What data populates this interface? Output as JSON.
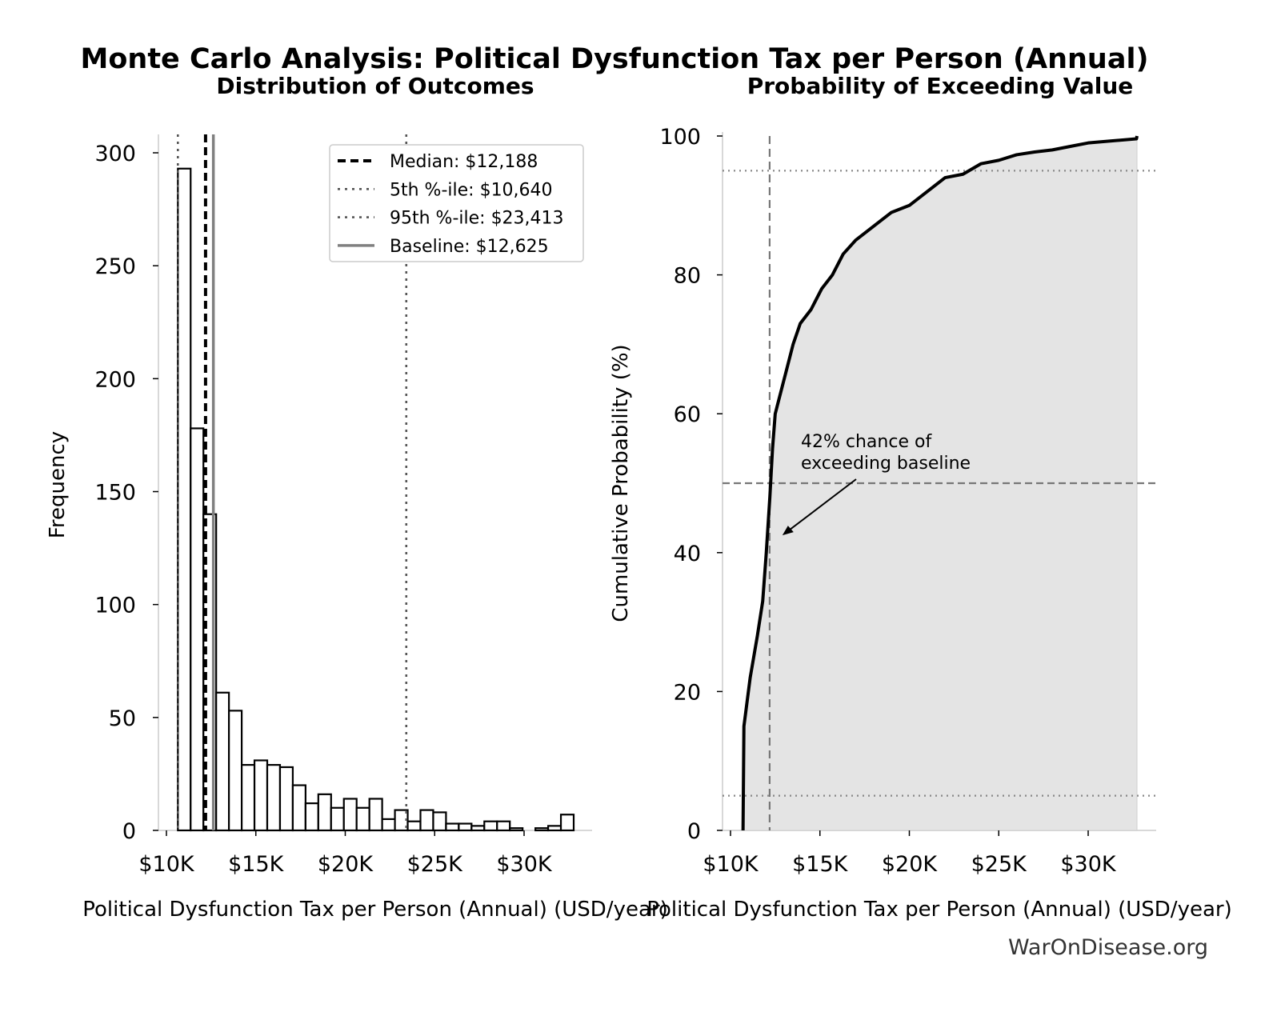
{
  "suptitle": "Monte Carlo Analysis: Political Dysfunction Tax per Person (Annual)",
  "watermark": "WarOnDisease.org",
  "colors": {
    "bar_fill": "#ffffff",
    "bar_edge": "#000000",
    "baseline": "#808080",
    "shade": "#e4e4e4",
    "curve": "#000000",
    "reference": "#555555"
  },
  "chart_data": [
    {
      "type": "bar",
      "title": "Distribution of Outcomes",
      "xlabel": "Political Dysfunction Tax per Person (Annual) (USD/year)",
      "ylabel": "Frequency",
      "bin_start": 10.64,
      "bin_width": 0.714,
      "x_unit": "K USD",
      "values": [
        293,
        178,
        140,
        61,
        53,
        29,
        31,
        29,
        28,
        20,
        12,
        16,
        10,
        14,
        10,
        14,
        5,
        9,
        4,
        9,
        8,
        3,
        3,
        2,
        4,
        4,
        1,
        0,
        1,
        2,
        7
      ],
      "xlim": [
        9.8,
        33.5
      ],
      "ylim": [
        0,
        308
      ],
      "xticks": [
        {
          "v": 10,
          "label": "$10K"
        },
        {
          "v": 15,
          "label": "$15K"
        },
        {
          "v": 20,
          "label": "$20K"
        },
        {
          "v": 25,
          "label": "$25K"
        },
        {
          "v": 30,
          "label": "$30K"
        }
      ],
      "yticks": [
        {
          "v": 0,
          "label": "0"
        },
        {
          "v": 50,
          "label": "50"
        },
        {
          "v": 100,
          "label": "100"
        },
        {
          "v": 150,
          "label": "150"
        },
        {
          "v": 200,
          "label": "200"
        },
        {
          "v": 250,
          "label": "250"
        },
        {
          "v": 300,
          "label": "300"
        }
      ],
      "reference_lines": [
        {
          "name": "Median: $12,188",
          "value": 12.188,
          "style": "dashed",
          "color": "#000000"
        },
        {
          "name": "5th %-ile: $10,640",
          "value": 10.64,
          "style": "dotted",
          "color": "#555555"
        },
        {
          "name": "95th %-ile: $23,413",
          "value": 23.413,
          "style": "dotted",
          "color": "#555555"
        },
        {
          "name": "Baseline: $12,625",
          "value": 12.625,
          "style": "solid",
          "color": "#808080"
        }
      ],
      "legend": "top-right",
      "grid": false
    },
    {
      "type": "area",
      "title": "Probability of Exceeding Value",
      "xlabel": "Political Dysfunction Tax per Person (Annual) (USD/year)",
      "ylabel": "Cumulative Probability (%)",
      "x_unit": "K USD",
      "x": [
        10.7,
        10.75,
        10.9,
        11.1,
        11.5,
        11.8,
        12.0,
        12.2,
        12.35,
        12.5,
        12.8,
        13.2,
        13.5,
        13.9,
        14.5,
        15.1,
        15.7,
        16.3,
        17.0,
        18.0,
        19.0,
        20.0,
        21.0,
        22.0,
        23.0,
        24.0,
        25.0,
        26.0,
        27.0,
        28.0,
        29.0,
        30.0,
        32.7,
        32.73
      ],
      "y": [
        0,
        15,
        18,
        22,
        28,
        33,
        40,
        48,
        55,
        60,
        63,
        67,
        70,
        73,
        75,
        78,
        80,
        83,
        85,
        87,
        89,
        90,
        92,
        94,
        94.5,
        96,
        96.5,
        97.3,
        97.7,
        98,
        98.5,
        99,
        99.6,
        100
      ],
      "xlim": [
        9.6,
        33.5
      ],
      "ylim": [
        0,
        100
      ],
      "xticks": [
        {
          "v": 10,
          "label": "$10K"
        },
        {
          "v": 15,
          "label": "$15K"
        },
        {
          "v": 20,
          "label": "$20K"
        },
        {
          "v": 25,
          "label": "$25K"
        },
        {
          "v": 30,
          "label": "$30K"
        }
      ],
      "yticks": [
        {
          "v": 0,
          "label": "0"
        },
        {
          "v": 20,
          "label": "20"
        },
        {
          "v": 40,
          "label": "40"
        },
        {
          "v": 60,
          "label": "60"
        },
        {
          "v": 80,
          "label": "80"
        },
        {
          "v": 100,
          "label": "100"
        }
      ],
      "reference_lines": [
        {
          "axis": "x",
          "value": 12.188,
          "style": "dashed"
        },
        {
          "axis": "y",
          "value": 50,
          "style": "dashed"
        },
        {
          "axis": "y",
          "value": 5,
          "style": "dotted"
        },
        {
          "axis": "y",
          "value": 95,
          "style": "dotted"
        }
      ],
      "annotation": {
        "line1": "42% chance of",
        "line2": "exceeding baseline",
        "arrow_to": {
          "x": 12.9,
          "y": 42.5
        }
      },
      "grid": false
    }
  ]
}
